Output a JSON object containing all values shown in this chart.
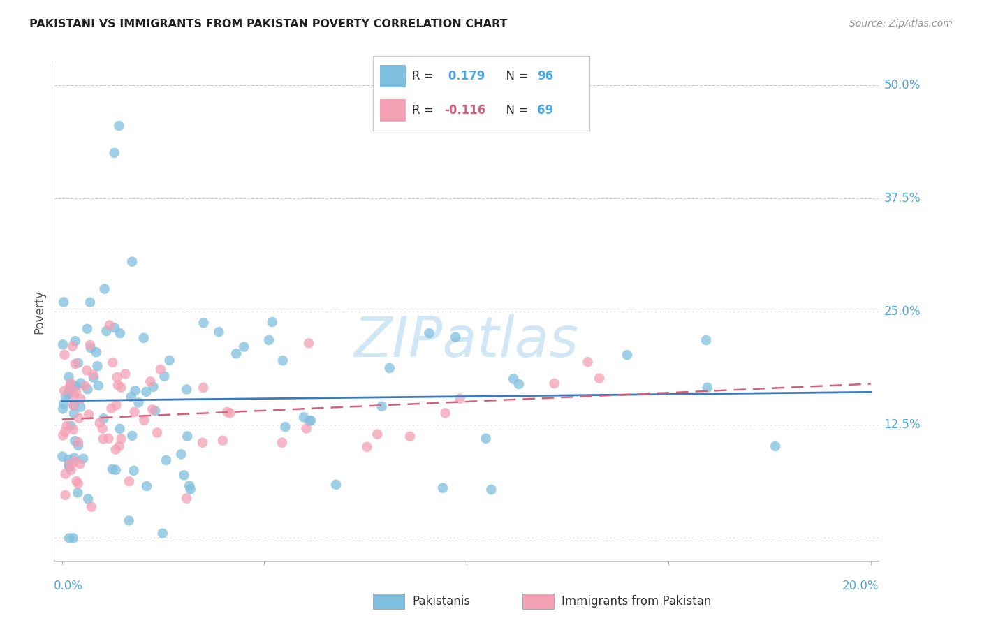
{
  "title": "PAKISTANI VS IMMIGRANTS FROM PAKISTAN POVERTY CORRELATION CHART",
  "source": "Source: ZipAtlas.com",
  "ylabel": "Poverty",
  "color_blue": "#7fbfdf",
  "color_pink": "#f4a0b5",
  "trendline_blue": "#3a7abf",
  "trendline_pink": "#d4607a",
  "watermark": "ZIPatlas",
  "R_blue": 0.179,
  "N_blue": 96,
  "R_pink": -0.116,
  "N_pink": 69
}
